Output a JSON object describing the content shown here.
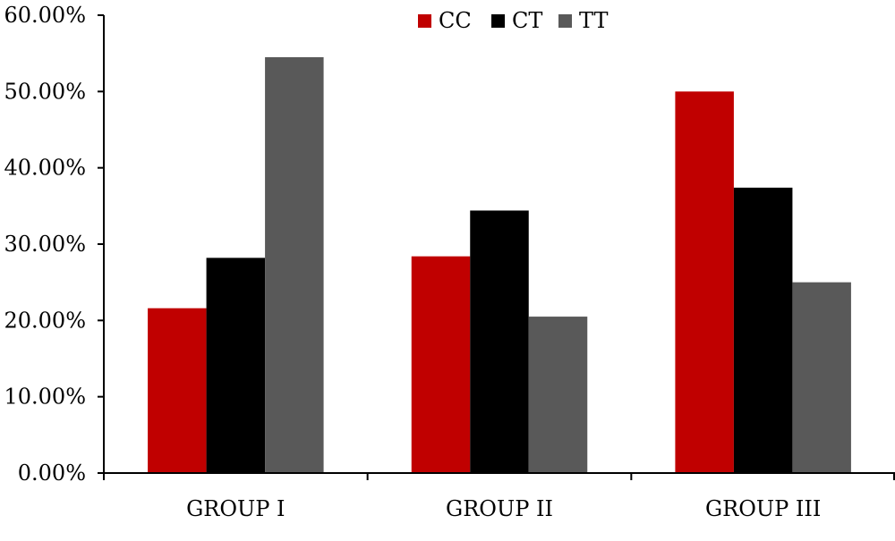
{
  "chart_data": {
    "type": "bar",
    "categories": [
      "GROUP I",
      "GROUP II",
      "GROUP III"
    ],
    "series": [
      {
        "name": "CC",
        "color": "#C00000",
        "values": [
          21.6,
          28.4,
          50.0
        ]
      },
      {
        "name": "CT",
        "color": "#000000",
        "values": [
          28.2,
          34.4,
          37.4
        ]
      },
      {
        "name": "TT",
        "color": "#595959",
        "values": [
          54.5,
          20.5,
          25.0
        ]
      }
    ],
    "ylim": [
      0,
      60
    ],
    "yticks": [
      0,
      10,
      20,
      30,
      40,
      50,
      60
    ],
    "ytick_labels": [
      "0.00%",
      "10.00%",
      "20.00%",
      "30.00%",
      "40.00%",
      "50.00%",
      "60.00%"
    ],
    "legend_position": "top-center",
    "grid": false,
    "title": "",
    "xlabel": "",
    "ylabel": ""
  }
}
